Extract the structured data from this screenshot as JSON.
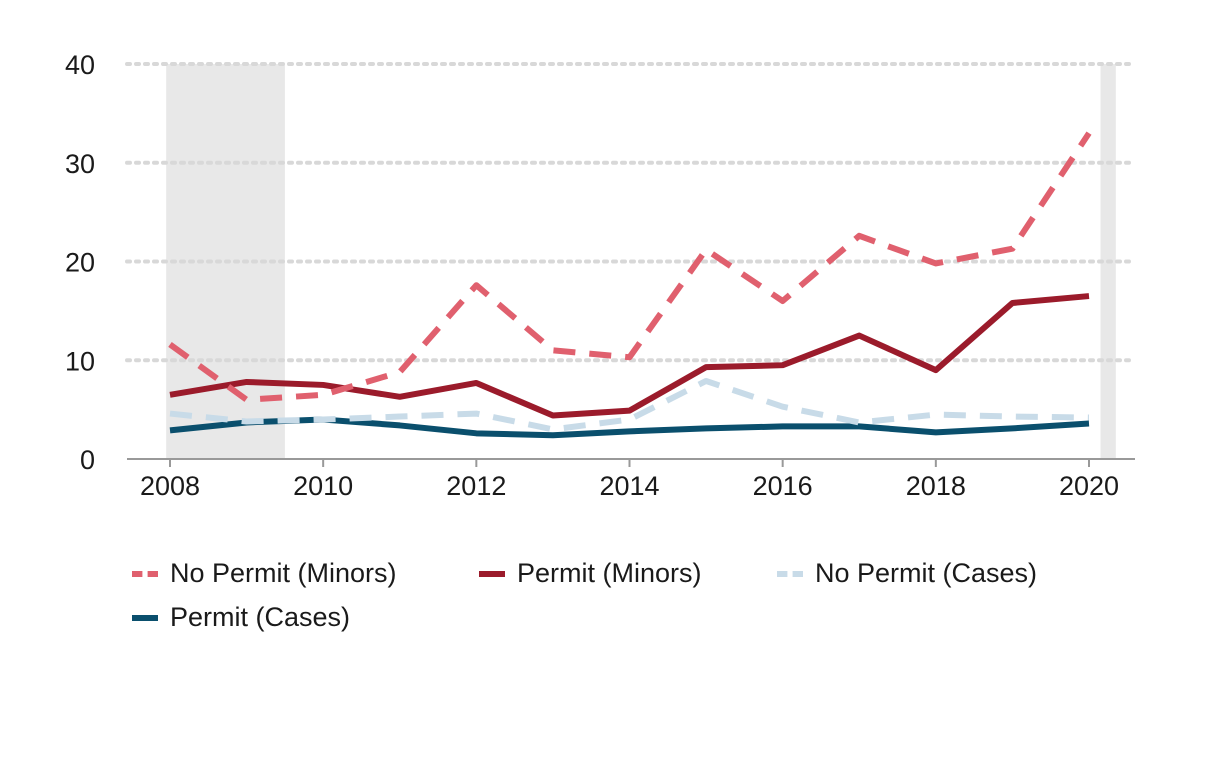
{
  "chart_data": {
    "type": "line",
    "x": [
      2008,
      2009,
      2010,
      2011,
      2012,
      2013,
      2014,
      2015,
      2016,
      2017,
      2018,
      2019,
      2020
    ],
    "xticks": [
      "2008",
      "2010",
      "2012",
      "2014",
      "2016",
      "2018",
      "2020"
    ],
    "yticks": [
      "0",
      "10",
      "20",
      "30",
      "40"
    ],
    "ylim": [
      0,
      40
    ],
    "xlim": [
      2008,
      2020
    ],
    "grid": "horizontal dotted",
    "legend_position": "bottom",
    "recession_bands": [
      [
        2007.95,
        2009.5
      ],
      [
        2020.15,
        2020.35
      ]
    ],
    "series": [
      {
        "name": "No Permit (Minors)",
        "style": "dashed",
        "color": "#e0606e",
        "values": [
          11.6,
          6.0,
          6.5,
          8.8,
          17.6,
          11.0,
          10.3,
          21.2,
          16.0,
          22.6,
          19.8,
          21.3,
          33.0
        ]
      },
      {
        "name": "Permit (Minors)",
        "style": "solid",
        "color": "#9b1b2b",
        "values": [
          6.5,
          7.8,
          7.5,
          6.3,
          7.7,
          4.4,
          4.9,
          9.3,
          9.5,
          12.5,
          9.0,
          15.8,
          16.5
        ]
      },
      {
        "name": "No Permit (Cases)",
        "style": "dashed",
        "color": "#c8dbe8",
        "values": [
          4.6,
          3.8,
          4.0,
          4.3,
          4.6,
          3.0,
          4.0,
          7.9,
          5.3,
          3.7,
          4.5,
          4.3,
          4.2
        ]
      },
      {
        "name": "Permit (Cases)",
        "style": "solid",
        "color": "#0a4f6d",
        "values": [
          2.9,
          3.7,
          4.0,
          3.4,
          2.6,
          2.4,
          2.8,
          3.1,
          3.3,
          3.3,
          2.7,
          3.1,
          3.6
        ]
      }
    ]
  }
}
